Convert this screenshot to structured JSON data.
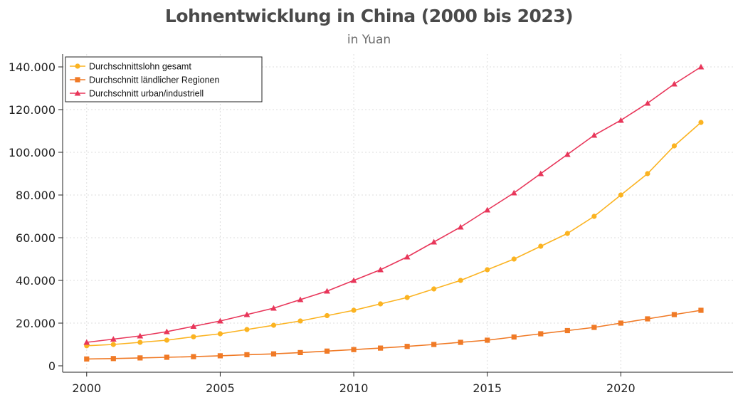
{
  "chart_data": {
    "type": "line",
    "title": "Lohnentwicklung in China (2000 bis 2023)",
    "subtitle": "in Yuan",
    "xlabel": "",
    "ylabel": "",
    "xlim": [
      1999.1,
      2024.2
    ],
    "ylim": [
      -3000,
      146000
    ],
    "x_ticks": [
      2000,
      2005,
      2010,
      2015,
      2020
    ],
    "y_ticks": [
      0,
      20000,
      40000,
      60000,
      80000,
      100000,
      120000,
      140000
    ],
    "y_tick_labels": [
      "0",
      "20.000",
      "40.000",
      "60.000",
      "80.000",
      "100.000",
      "120.000",
      "140.000"
    ],
    "grid": true,
    "legend_position": "top-left",
    "x": [
      2000,
      2001,
      2002,
      2003,
      2004,
      2005,
      2006,
      2007,
      2008,
      2009,
      2010,
      2011,
      2012,
      2013,
      2014,
      2015,
      2016,
      2017,
      2018,
      2019,
      2020,
      2021,
      2022,
      2023
    ],
    "series": [
      {
        "name": "Durchschnittslohn gesamt",
        "color": "#fbb321",
        "marker": "circle",
        "values": [
          9400,
          10000,
          11000,
          12000,
          13600,
          15000,
          17000,
          19000,
          21000,
          23500,
          26000,
          29000,
          32000,
          36000,
          40000,
          45000,
          50000,
          56000,
          62000,
          70000,
          80000,
          90000,
          103000,
          114000
        ]
      },
      {
        "name": "Durchschnitt ländlicher Regionen",
        "color": "#f07a26",
        "marker": "square",
        "values": [
          3200,
          3400,
          3700,
          4000,
          4300,
          4700,
          5200,
          5600,
          6200,
          6900,
          7600,
          8300,
          9100,
          10000,
          11000,
          12000,
          13500,
          15000,
          16500,
          18000,
          20000,
          22000,
          24000,
          26000
        ]
      },
      {
        "name": "Durchschnitt urban/industriell",
        "color": "#e8365a",
        "marker": "triangle",
        "values": [
          11000,
          12500,
          14000,
          16000,
          18500,
          21000,
          24000,
          27000,
          31000,
          35000,
          40000,
          45000,
          51000,
          58000,
          65000,
          73000,
          81000,
          90000,
          99000,
          108000,
          115000,
          123000,
          132000,
          140000
        ]
      }
    ]
  }
}
